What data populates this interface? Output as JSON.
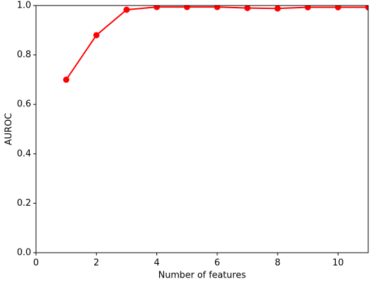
{
  "chart_data": {
    "type": "line",
    "x_label": "Number of features",
    "y_label": "AUROC",
    "x": [
      1,
      2,
      3,
      4,
      5,
      6,
      7,
      8,
      9,
      10,
      11
    ],
    "series": [
      {
        "name": "AUROC",
        "color": "#ff0000",
        "values": [
          0.7,
          0.88,
          0.983,
          0.994,
          0.994,
          0.994,
          0.99,
          0.988,
          0.993,
          0.993,
          0.993
        ]
      }
    ],
    "xlim": [
      0,
      11
    ],
    "xticks": [
      0,
      2,
      4,
      6,
      8,
      10
    ],
    "ylim": [
      0,
      1
    ],
    "yticks": [
      {
        "value": 0,
        "label": "0.0"
      },
      0.2,
      0.4,
      0.6,
      0.8,
      {
        "value": 1,
        "label": "1.0"
      }
    ],
    "grid": false
  }
}
